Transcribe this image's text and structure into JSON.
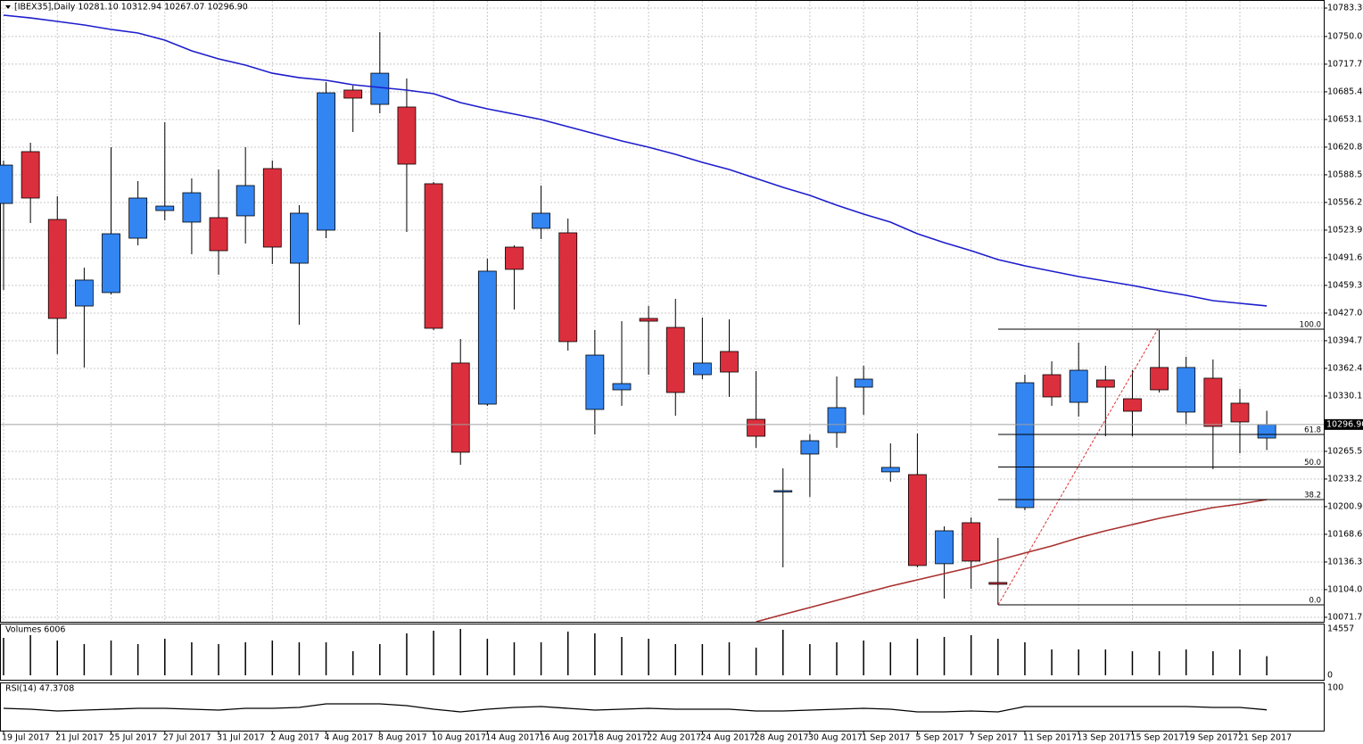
{
  "chart_data": [
    {
      "type": "candlestick",
      "header": "[IBEX35],Daily  10281.10 10312.94 10267.07 10296.90",
      "categories": [
        "19 Jul 2017",
        null,
        "21 Jul 2017",
        null,
        "25 Jul 2017",
        null,
        "27 Jul 2017",
        null,
        "31 Jul 2017",
        null,
        "2 Aug 2017",
        null,
        "4 Aug 2017",
        null,
        "8 Aug 2017",
        null,
        "10 Aug 2017",
        null,
        "14 Aug 2017",
        null,
        "16 Aug 2017",
        null,
        "18 Aug 2017",
        null,
        "22 Aug 2017",
        null,
        "24 Aug 2017",
        null,
        "28 Aug 2017",
        null,
        "30 Aug 2017",
        null,
        "1 Sep 2017",
        null,
        "5 Sep 2017",
        null,
        "7 Sep 2017",
        null,
        "11 Sep 2017",
        null,
        "13 Sep 2017",
        null,
        "15 Sep 2017",
        null,
        "19 Sep 2017",
        null,
        "21 Sep 2017",
        null
      ],
      "open": [
        10555.1,
        10615.6,
        10536.4,
        10435.3,
        10451.0,
        10514.5,
        10546.8,
        10533.3,
        10538.5,
        10540.6,
        10595.8,
        10485.3,
        10523.9,
        10687.5,
        10670.8,
        10667.7,
        10578.1,
        10368.7,
        10320.7,
        10504.1,
        10526.0,
        10520.8,
        10314.5,
        10337.4,
        10420.8,
        10410.3,
        10355.1,
        10382.2,
        10303.0,
        10218.6,
        10262.4,
        10287.4,
        10340.5,
        10241.6,
        10238.4,
        10134.3,
        10182.2,
        10112.4,
        10199.9,
        10355.1,
        10322.8,
        10348.9,
        10327.0,
        10363.5,
        10311.4,
        10351.0,
        10321.8,
        10281.1
      ],
      "high": [
        10605.2,
        10626.0,
        10563.5,
        10480.1,
        10620.8,
        10581.2,
        10649.9,
        10584.3,
        10594.7,
        10620.8,
        10605.2,
        10553.1,
        10696.8,
        10692.7,
        10755.2,
        10701.0,
        10580.1,
        10396.8,
        10490.6,
        10506.2,
        10576.0,
        10537.4,
        10407.2,
        10417.6,
        10435.3,
        10443.7,
        10421.8,
        10419.7,
        10359.3,
        10245.7,
        10285.3,
        10353.0,
        10365.5,
        10274.9,
        10286.4,
        10178.0,
        10188.4,
        10164.5,
        10355.1,
        10370.7,
        10392.6,
        10365.5,
        10360.3,
        10407.2,
        10376.0,
        10372.8,
        10338.5,
        10312.94
      ],
      "low": [
        10454.1,
        10532.2,
        10379.1,
        10363.5,
        10448.9,
        10506.2,
        10535.4,
        10495.8,
        10471.8,
        10508.3,
        10484.3,
        10413.5,
        10514.5,
        10638.5,
        10660.4,
        10521.8,
        10407.2,
        10249.9,
        10318.7,
        10431.2,
        10513.5,
        10383.2,
        10285.3,
        10318.7,
        10355.1,
        10307.2,
        10349.9,
        10329.1,
        10269.7,
        10130.1,
        10212.4,
        10269.7,
        10308.2,
        10230.1,
        10130.1,
        10093.6,
        10105.1,
        10086.3,
        10196.8,
        10318.7,
        10306.2,
        10283.2,
        10283.2,
        10334.3,
        10296.8,
        10244.7,
        10263.4,
        10267.07
      ],
      "close": [
        10599.9,
        10561.4,
        10420.8,
        10465.6,
        10519.7,
        10561.4,
        10552.0,
        10567.6,
        10499.9,
        10576.0,
        10504.1,
        10543.7,
        10684.3,
        10678.1,
        10707.2,
        10601.0,
        10409.3,
        10264.5,
        10476.0,
        10478.1,
        10543.7,
        10393.7,
        10378.0,
        10344.7,
        10417.6,
        10334.3,
        10368.7,
        10358.2,
        10283.2,
        10219.7,
        10278.0,
        10316.6,
        10349.9,
        10246.8,
        10132.2,
        10172.8,
        10137.4,
        10110.3,
        10345.7,
        10329.1,
        10360.3,
        10340.5,
        10312.4,
        10337.4,
        10363.5,
        10294.7,
        10299.9,
        10296.9
      ],
      "up_color": "#3385f2",
      "down_color": "#dc2f3d",
      "lines": [
        {
          "color": "#1d1dcc",
          "values": [
            10775.0,
            10771.8,
            10767.7,
            10763.5,
            10758.3,
            10754.1,
            10745.8,
            10733.3,
            10723.9,
            10716.6,
            10707.2,
            10702.0,
            10698.9,
            10693.7,
            10690.6,
            10687.5,
            10683.3,
            10672.9,
            10665.6,
            10659.4,
            10653.1,
            10644.8,
            10636.4,
            10628.1,
            10620.8,
            10612.5,
            10603.1,
            10594.7,
            10584.3,
            10573.9,
            10564.5,
            10553.1,
            10542.6,
            10533.3,
            10519.7,
            10509.3,
            10499.9,
            10489.5,
            10482.2,
            10476.0,
            10469.7,
            10464.5,
            10459.3,
            10453.1,
            10447.8,
            10441.6,
            10438.5,
            10435.4
          ]
        },
        {
          "color": "#a8302e",
          "values": [
            null,
            null,
            null,
            null,
            null,
            null,
            null,
            null,
            null,
            null,
            null,
            null,
            null,
            null,
            null,
            null,
            null,
            null,
            null,
            null,
            null,
            null,
            null,
            null,
            null,
            null,
            null,
            null,
            10066.5,
            10074.9,
            10083.2,
            10091.5,
            10099.8,
            10108.2,
            10115.5,
            10122.8,
            10130.1,
            10138.4,
            10146.8,
            10155.1,
            10164.5,
            10172.8,
            10180.1,
            10187.4,
            10193.6,
            10199.9,
            10204.0,
            10209.2
          ]
        }
      ],
      "fib": {
        "high": 10408.3,
        "low": 10086.3,
        "color": "#000000",
        "trend_color": "#e03030",
        "levels": [
          {
            "value": 100,
            "label": "100.0"
          },
          61.8,
          {
            "value": 50,
            "label": "50.0"
          },
          38.2,
          {
            "value": 0,
            "label": "0.0"
          }
        ]
      },
      "current_price": {
        "value": 10296.9,
        "label": "10296.90"
      },
      "ylim": [
        10066.5,
        10792.7
      ],
      "yticks": [
        {
          "value": 10783.3,
          "label": "10783.30"
        },
        10750.05,
        10717.75,
        10685.45,
        10653.15,
        10620.85,
        10588.55,
        10556.25,
        10523.95,
        10491.65,
        10459.35,
        10427.05,
        10394.75,
        10362.45,
        10330.15,
        10265.55,
        10233.25,
        10200.95,
        10168.65,
        10136.35,
        10104.05,
        10071.75
      ],
      "grid": true
    },
    {
      "type": "bar",
      "title": "Volumes 6006",
      "color": "#000000",
      "values": [
        11760,
        12600,
        10920,
        9800,
        10920,
        9800,
        11480,
        10360,
        9800,
        10360,
        10920,
        10360,
        10360,
        7560,
        9800,
        13160,
        14000,
        14557,
        11480,
        10360,
        10360,
        13720,
        13160,
        12040,
        11480,
        9800,
        9800,
        10360,
        8680,
        14280,
        9800,
        10360,
        10920,
        10360,
        11480,
        12040,
        12600,
        11480,
        10360,
        8120,
        8120,
        8120,
        7560,
        7560,
        8120,
        7560,
        8120,
        6006
      ],
      "ylim": [
        0,
        14557
      ],
      "yticks": [
        14557,
        0
      ]
    },
    {
      "type": "line",
      "title": "RSI(14) 47.3708",
      "color": "#000000",
      "values": [
        51.1,
        48.9,
        44.7,
        46.8,
        48.9,
        51.1,
        51.1,
        48.9,
        46.8,
        51.1,
        51.1,
        53.2,
        61.7,
        61.7,
        61.7,
        57.4,
        48.9,
        42.6,
        48.9,
        53.2,
        55.3,
        51.1,
        46.8,
        48.9,
        51.1,
        48.9,
        48.9,
        48.9,
        44.7,
        44.7,
        46.8,
        48.9,
        51.1,
        48.9,
        42.6,
        42.6,
        44.7,
        42.6,
        55.3,
        55.3,
        55.3,
        55.3,
        55.3,
        55.3,
        55.3,
        53.2,
        53.2,
        47.3708
      ],
      "ylim": [
        0,
        100
      ],
      "yticks": [
        100
      ]
    }
  ]
}
